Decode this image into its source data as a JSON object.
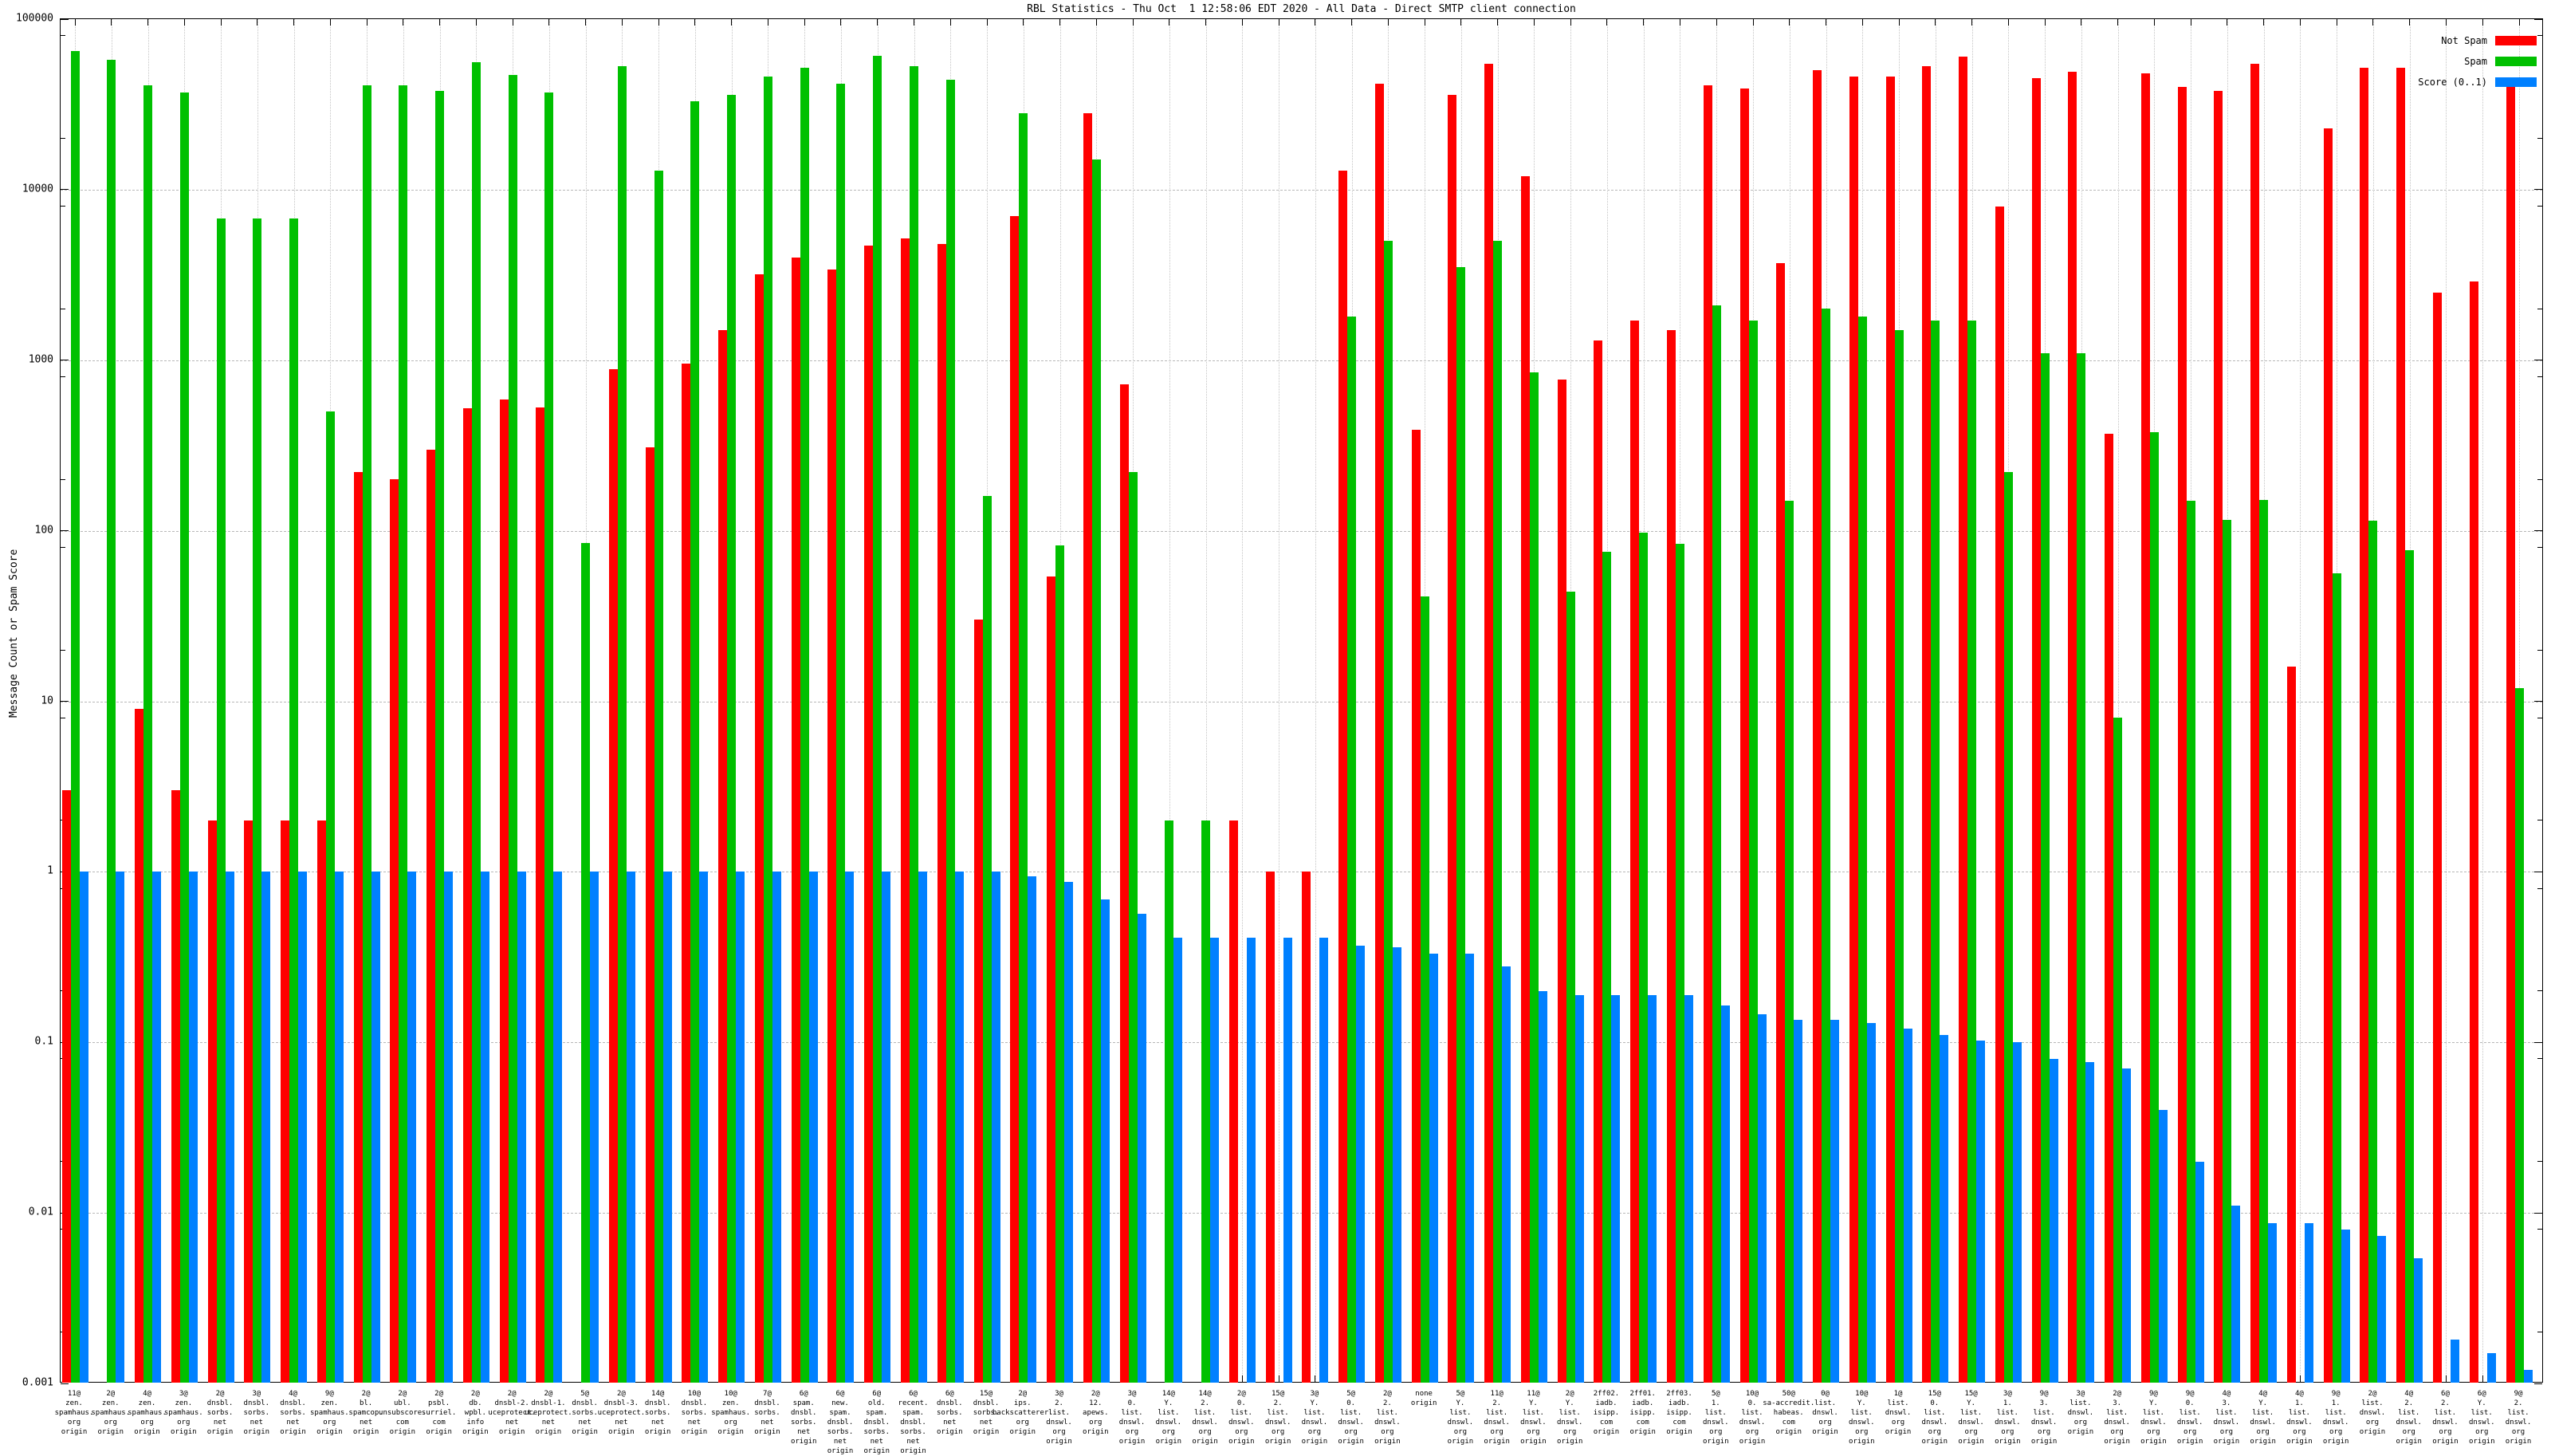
{
  "title": "RBL Statistics - Thu Oct  1 12:58:06 EDT 2020 - All Data - Direct SMTP client connection",
  "y_axis": {
    "label": "Message Count or Spam Score",
    "ticks": [
      "100000",
      "10000",
      "1000",
      "100",
      "10",
      "1",
      "0.1",
      "0.01",
      "0.001"
    ]
  },
  "legend": [
    {
      "label": "Not Spam",
      "color": "#ff0000"
    },
    {
      "label": "Spam",
      "color": "#00c000"
    },
    {
      "label": "Score (0..1)",
      "color": "#0080ff"
    }
  ],
  "colors": {
    "not_spam": "#ff0000",
    "spam": "#00c000",
    "score": "#0080ff",
    "grid": "#b8b8b8",
    "frame": "#000000"
  },
  "chart_data": {
    "type": "bar",
    "scale": "log",
    "ylim": [
      0.001,
      100000
    ],
    "grid": true,
    "legend_position": "top-right",
    "title": "RBL Statistics - Thu Oct  1 12:58:06 EDT 2020 - All Data - Direct SMTP client connection",
    "ylabel": "Message Count or Spam Score",
    "series_names": [
      "Not Spam",
      "Spam",
      "Score (0..1)"
    ],
    "groups": [
      {
        "label": [
          "11@",
          "zen.",
          "spamhaus.",
          "org",
          "origin"
        ],
        "not_spam": 3,
        "spam": 65000,
        "score": 1.0
      },
      {
        "label": [
          "2@",
          "zen.",
          "spamhaus.",
          "org",
          "origin"
        ],
        "not_spam": null,
        "spam": 58000,
        "score": 1.0
      },
      {
        "label": [
          "4@",
          "zen.",
          "spamhaus.",
          "org",
          "origin"
        ],
        "not_spam": 9,
        "spam": 41000,
        "score": 1.0
      },
      {
        "label": [
          "3@",
          "zen.",
          "spamhaus.",
          "org",
          "origin"
        ],
        "not_spam": 3,
        "spam": 37000,
        "score": 1.0
      },
      {
        "label": [
          "2@",
          "dnsbl.",
          "sorbs.",
          "net",
          "origin"
        ],
        "not_spam": 2,
        "spam": 6800,
        "score": 1.0
      },
      {
        "label": [
          "3@",
          "dnsbl.",
          "sorbs.",
          "net",
          "origin"
        ],
        "not_spam": 2,
        "spam": 6800,
        "score": 1.0
      },
      {
        "label": [
          "4@",
          "dnsbl.",
          "sorbs.",
          "net",
          "origin"
        ],
        "not_spam": 2,
        "spam": 6800,
        "score": 1.0
      },
      {
        "label": [
          "9@",
          "zen.",
          "spamhaus.",
          "org",
          "origin"
        ],
        "not_spam": 2,
        "spam": 500,
        "score": 1.0
      },
      {
        "label": [
          "2@",
          "bl.",
          "spamcop.",
          "net",
          "origin"
        ],
        "not_spam": 220,
        "spam": 41000,
        "score": 1.0
      },
      {
        "label": [
          "2@",
          "ubl.",
          "unsubscore.",
          "com",
          "origin"
        ],
        "not_spam": 200,
        "spam": 41000,
        "score": 1.0
      },
      {
        "label": [
          "2@",
          "psbl.",
          "surriel.",
          "com",
          "origin"
        ],
        "not_spam": 300,
        "spam": 38000,
        "score": 1.0
      },
      {
        "label": [
          "2@",
          "db.",
          "wpbl.",
          "info",
          "origin"
        ],
        "not_spam": 520,
        "spam": 56000,
        "score": 1.0
      },
      {
        "label": [
          "2@",
          "dnsbl-2.",
          "uceprotect.",
          "net",
          "origin"
        ],
        "not_spam": 590,
        "spam": 47000,
        "score": 1.0
      },
      {
        "label": [
          "2@",
          "dnsbl-1.",
          "uceprotect.",
          "net",
          "origin"
        ],
        "not_spam": 530,
        "spam": 37000,
        "score": 1.0
      },
      {
        "label": [
          "5@",
          "dnsbl.",
          "sorbs.",
          "net",
          "origin"
        ],
        "not_spam": null,
        "spam": 85,
        "score": 1.0
      },
      {
        "label": [
          "2@",
          "dnsbl-3.",
          "uceprotect.",
          "net",
          "origin"
        ],
        "not_spam": 890,
        "spam": 53000,
        "score": 1.0
      },
      {
        "label": [
          "14@",
          "dnsbl.",
          "sorbs.",
          "net",
          "origin"
        ],
        "not_spam": 310,
        "spam": 13000,
        "score": 1.0
      },
      {
        "label": [
          "10@",
          "dnsbl.",
          "sorbs.",
          "net",
          "origin"
        ],
        "not_spam": 960,
        "spam": 33000,
        "score": 1.0
      },
      {
        "label": [
          "10@",
          "zen.",
          "spamhaus.",
          "org",
          "origin"
        ],
        "not_spam": 1500,
        "spam": 36000,
        "score": 1.0
      },
      {
        "label": [
          "7@",
          "dnsbl.",
          "sorbs.",
          "net",
          "origin"
        ],
        "not_spam": 3200,
        "spam": 46000,
        "score": 1.0
      },
      {
        "label": [
          "6@",
          "spam.",
          "dnsbl.",
          "sorbs.",
          "net",
          "origin"
        ],
        "not_spam": 4000,
        "spam": 52000,
        "score": 1.0
      },
      {
        "label": [
          "6@",
          "new.",
          "spam.",
          "dnsbl.",
          "sorbs.",
          "net",
          "origin"
        ],
        "not_spam": 3400,
        "spam": 42000,
        "score": 1.0
      },
      {
        "label": [
          "6@",
          "old.",
          "spam.",
          "dnsbl.",
          "sorbs.",
          "net",
          "origin"
        ],
        "not_spam": 4700,
        "spam": 61000,
        "score": 1.0
      },
      {
        "label": [
          "6@",
          "recent.",
          "spam.",
          "dnsbl.",
          "sorbs.",
          "net",
          "origin"
        ],
        "not_spam": 5200,
        "spam": 53000,
        "score": 1.0
      },
      {
        "label": [
          "6@",
          "dnsbl.",
          "sorbs.",
          "net",
          "origin"
        ],
        "not_spam": 4800,
        "spam": 44000,
        "score": 1.0
      },
      {
        "label": [
          "15@",
          "dnsbl.",
          "sorbs.",
          "net",
          "origin"
        ],
        "not_spam": 30,
        "spam": 160,
        "score": 1.0
      },
      {
        "label": [
          "2@",
          "ips.",
          "backscatterer.",
          "org",
          "origin"
        ],
        "not_spam": 7000,
        "spam": 28000,
        "score": 0.94
      },
      {
        "label": [
          "3@",
          "2.",
          "list.",
          "dnswl.",
          "org",
          "origin"
        ],
        "not_spam": 54,
        "spam": 82,
        "score": 0.87
      },
      {
        "label": [
          "2@",
          "12.",
          "apews.",
          "org",
          "origin"
        ],
        "not_spam": 28000,
        "spam": 15000,
        "score": 0.69
      },
      {
        "label": [
          "3@",
          "0.",
          "list.",
          "dnswl.",
          "org",
          "origin"
        ],
        "not_spam": 720,
        "spam": 220,
        "score": 0.57
      },
      {
        "label": [
          "14@",
          "Y.",
          "list.",
          "dnswl.",
          "org",
          "origin"
        ],
        "not_spam": null,
        "spam": 2,
        "score": 0.41
      },
      {
        "label": [
          "14@",
          "2.",
          "list.",
          "dnswl.",
          "org",
          "origin"
        ],
        "not_spam": null,
        "spam": 2,
        "score": 0.41
      },
      {
        "label": [
          "2@",
          "0.",
          "list.",
          "dnswl.",
          "org",
          "origin"
        ],
        "not_spam": 2,
        "spam": null,
        "score": 0.41
      },
      {
        "label": [
          "15@",
          "2.",
          "list.",
          "dnswl.",
          "org",
          "origin"
        ],
        "not_spam": 1,
        "spam": null,
        "score": 0.41
      },
      {
        "label": [
          "3@",
          "Y.",
          "list.",
          "dnswl.",
          "org",
          "origin"
        ],
        "not_spam": 1,
        "spam": null,
        "score": 0.41
      },
      {
        "label": [
          "5@",
          "0.",
          "list.",
          "dnswl.",
          "org",
          "origin"
        ],
        "not_spam": 13000,
        "spam": 1800,
        "score": 0.37
      },
      {
        "label": [
          "2@",
          "2.",
          "list.",
          "dnswl.",
          "org",
          "origin"
        ],
        "not_spam": 42000,
        "spam": 5000,
        "score": 0.36
      },
      {
        "label": [
          "none",
          "origin"
        ],
        "not_spam": 390,
        "spam": 41,
        "score": 0.33
      },
      {
        "label": [
          "5@",
          "Y.",
          "list.",
          "dnswl.",
          "org",
          "origin"
        ],
        "not_spam": 36000,
        "spam": 3500,
        "score": 0.33
      },
      {
        "label": [
          "11@",
          "2.",
          "list.",
          "dnswl.",
          "org",
          "origin"
        ],
        "not_spam": 55000,
        "spam": 5000,
        "score": 0.28
      },
      {
        "label": [
          "11@",
          "Y.",
          "list.",
          "dnswl.",
          "org",
          "origin"
        ],
        "not_spam": 12000,
        "spam": 850,
        "score": 0.2
      },
      {
        "label": [
          "2@",
          "Y.",
          "list.",
          "dnswl.",
          "org",
          "origin"
        ],
        "not_spam": 770,
        "spam": 44,
        "score": 0.19
      },
      {
        "label": [
          "2ff02.",
          "iadb.",
          "isipp.",
          "com",
          "origin"
        ],
        "not_spam": 1300,
        "spam": 75,
        "score": 0.19
      },
      {
        "label": [
          "2ff01.",
          "iadb.",
          "isipp.",
          "com",
          "origin"
        ],
        "not_spam": 1700,
        "spam": 98,
        "score": 0.19
      },
      {
        "label": [
          "2ff03.",
          "iadb.",
          "isipp.",
          "com",
          "origin"
        ],
        "not_spam": 1500,
        "spam": 84,
        "score": 0.19
      },
      {
        "label": [
          "5@",
          "1.",
          "list.",
          "dnswl.",
          "org",
          "origin"
        ],
        "not_spam": 41000,
        "spam": 2100,
        "score": 0.165
      },
      {
        "label": [
          "10@",
          "0.",
          "list.",
          "dnswl.",
          "org",
          "origin"
        ],
        "not_spam": 39000,
        "spam": 1700,
        "score": 0.146
      },
      {
        "label": [
          "50@",
          "sa-accredit.",
          "habeas.",
          "com",
          "origin"
        ],
        "not_spam": 3700,
        "spam": 150,
        "score": 0.135
      },
      {
        "label": [
          "0@",
          "list.",
          "dnswl.",
          "org",
          "origin"
        ],
        "not_spam": 50000,
        "spam": 2000,
        "score": 0.135
      },
      {
        "label": [
          "10@",
          "Y.",
          "list.",
          "dnswl.",
          "org",
          "origin"
        ],
        "not_spam": 46000,
        "spam": 1800,
        "score": 0.13
      },
      {
        "label": [
          "1@",
          "list.",
          "dnswl.",
          "org",
          "origin"
        ],
        "not_spam": 46000,
        "spam": 1500,
        "score": 0.12
      },
      {
        "label": [
          "15@",
          "0.",
          "list.",
          "dnswl.",
          "org",
          "origin"
        ],
        "not_spam": 53000,
        "spam": 1700,
        "score": 0.111
      },
      {
        "label": [
          "15@",
          "Y.",
          "list.",
          "dnswl.",
          "org",
          "origin"
        ],
        "not_spam": 60000,
        "spam": 1700,
        "score": 0.102
      },
      {
        "label": [
          "3@",
          "1.",
          "list.",
          "dnswl.",
          "org",
          "origin"
        ],
        "not_spam": 8000,
        "spam": 220,
        "score": 0.1
      },
      {
        "label": [
          "9@",
          "3.",
          "list.",
          "dnswl.",
          "org",
          "origin"
        ],
        "not_spam": 45000,
        "spam": 1100,
        "score": 0.08
      },
      {
        "label": [
          "3@",
          "list.",
          "dnswl.",
          "org",
          "origin"
        ],
        "not_spam": 49000,
        "spam": 1100,
        "score": 0.077
      },
      {
        "label": [
          "2@",
          "3.",
          "list.",
          "dnswl.",
          "org",
          "origin"
        ],
        "not_spam": 370,
        "spam": 8,
        "score": 0.07
      },
      {
        "label": [
          "9@",
          "Y.",
          "list.",
          "dnswl.",
          "org",
          "origin"
        ],
        "not_spam": 48000,
        "spam": 380,
        "score": 0.04
      },
      {
        "label": [
          "9@",
          "0.",
          "list.",
          "dnswl.",
          "org",
          "origin"
        ],
        "not_spam": 40000,
        "spam": 150,
        "score": 0.02
      },
      {
        "label": [
          "4@",
          "3.",
          "list.",
          "dnswl.",
          "org",
          "origin"
        ],
        "not_spam": 38000,
        "spam": 116,
        "score": 0.011
      },
      {
        "label": [
          "4@",
          "Y.",
          "list.",
          "dnswl.",
          "org",
          "origin"
        ],
        "not_spam": 55000,
        "spam": 152,
        "score": 0.0087
      },
      {
        "label": [
          "4@",
          "1.",
          "list.",
          "dnswl.",
          "org",
          "origin"
        ],
        "not_spam": 16,
        "spam": null,
        "score": 0.0087
      },
      {
        "label": [
          "9@",
          "1.",
          "list.",
          "dnswl.",
          "org",
          "origin"
        ],
        "not_spam": 23000,
        "spam": 56,
        "score": 0.008
      },
      {
        "label": [
          "2@",
          "list.",
          "dnswl.",
          "org",
          "origin"
        ],
        "not_spam": 52000,
        "spam": 115,
        "score": 0.0073
      },
      {
        "label": [
          "4@",
          "2.",
          "list.",
          "dnswl.",
          "org",
          "origin"
        ],
        "not_spam": 52000,
        "spam": 77,
        "score": 0.0054
      },
      {
        "label": [
          "6@",
          "2.",
          "list.",
          "dnswl.",
          "org",
          "origin"
        ],
        "not_spam": 2500,
        "spam": null,
        "score": 0.0018
      },
      {
        "label": [
          "6@",
          "Y.",
          "list.",
          "dnswl.",
          "org",
          "origin"
        ],
        "not_spam": 2900,
        "spam": null,
        "score": 0.0015
      },
      {
        "label": [
          "9@",
          "2.",
          "list.",
          "dnswl.",
          "org",
          "origin"
        ],
        "not_spam": 41000,
        "spam": 12,
        "score": 0.0012
      }
    ]
  }
}
